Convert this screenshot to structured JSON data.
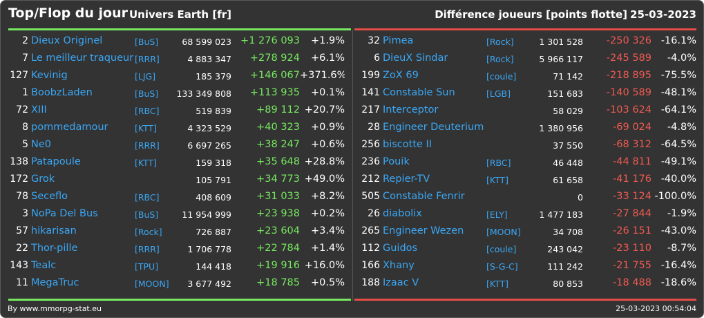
{
  "header": {
    "title": "Top/Flop du jour",
    "universe": "Univers Earth [fr]",
    "metric": "Différence joueurs [points flotte]",
    "date": "25-03-2023"
  },
  "colors": {
    "background": "#333333",
    "positive": "#77e860",
    "negative": "#ef5a52",
    "link": "#3aa7f5"
  },
  "top": [
    {
      "rank": "2",
      "name": "Dieux Originel",
      "alliance": "[BuS]",
      "points": "68 599 023",
      "delta": "+1 276 093",
      "pct": "+1.9%"
    },
    {
      "rank": "7",
      "name": "Le meilleur traqueur",
      "alliance": "[RRR]",
      "points": "4 883 347",
      "delta": "+278 924",
      "pct": "+6.1%"
    },
    {
      "rank": "127",
      "name": "Kevinig",
      "alliance": "[LJG]",
      "points": "185 379",
      "delta": "+146 067",
      "pct": "+371.6%"
    },
    {
      "rank": "1",
      "name": "BoobzLaden",
      "alliance": "[BuS]",
      "points": "133 349 808",
      "delta": "+113 935",
      "pct": "+0.1%"
    },
    {
      "rank": "72",
      "name": "XIII",
      "alliance": "[RBC]",
      "points": "519 839",
      "delta": "+89 112",
      "pct": "+20.7%"
    },
    {
      "rank": "8",
      "name": "pommedamour",
      "alliance": "[KTT]",
      "points": "4 323 529",
      "delta": "+40 323",
      "pct": "+0.9%"
    },
    {
      "rank": "5",
      "name": "Ne0",
      "alliance": "[RRR]",
      "points": "6 697 265",
      "delta": "+38 247",
      "pct": "+0.6%"
    },
    {
      "rank": "138",
      "name": "Patapoule",
      "alliance": "[KTT]",
      "points": "159 318",
      "delta": "+35 648",
      "pct": "+28.8%"
    },
    {
      "rank": "172",
      "name": "Grok",
      "alliance": "",
      "points": "105 791",
      "delta": "+34 773",
      "pct": "+49.0%"
    },
    {
      "rank": "78",
      "name": "Seceflo",
      "alliance": "[RBC]",
      "points": "408 609",
      "delta": "+31 033",
      "pct": "+8.2%"
    },
    {
      "rank": "3",
      "name": "NoPa Del Bus",
      "alliance": "[BuS]",
      "points": "11 954 999",
      "delta": "+23 938",
      "pct": "+0.2%"
    },
    {
      "rank": "57",
      "name": "hikarisan",
      "alliance": "[Rock]",
      "points": "726 887",
      "delta": "+23 604",
      "pct": "+3.4%"
    },
    {
      "rank": "22",
      "name": "Thor-pille",
      "alliance": "[RRR]",
      "points": "1 706 778",
      "delta": "+22 784",
      "pct": "+1.4%"
    },
    {
      "rank": "143",
      "name": "Tealc",
      "alliance": "[TPU]",
      "points": "144 418",
      "delta": "+19 916",
      "pct": "+16.0%"
    },
    {
      "rank": "11",
      "name": "MegaTruc",
      "alliance": "[MOON]",
      "points": "3 677 492",
      "delta": "+18 785",
      "pct": "+0.5%"
    }
  ],
  "flop": [
    {
      "rank": "32",
      "name": "Pimea",
      "alliance": "[Rock]",
      "points": "1 301 528",
      "delta": "-250 326",
      "pct": "-16.1%"
    },
    {
      "rank": "6",
      "name": "DieuX Sindar",
      "alliance": "[Rock]",
      "points": "5 966 117",
      "delta": "-245 589",
      "pct": "-4.0%"
    },
    {
      "rank": "199",
      "name": "ZoX 69",
      "alliance": "[coule]",
      "points": "71 142",
      "delta": "-218 895",
      "pct": "-75.5%"
    },
    {
      "rank": "141",
      "name": "Constable Sun",
      "alliance": "[LGB]",
      "points": "151 683",
      "delta": "-140 589",
      "pct": "-48.1%"
    },
    {
      "rank": "217",
      "name": "Interceptor",
      "alliance": "",
      "points": "58 029",
      "delta": "-103 624",
      "pct": "-64.1%"
    },
    {
      "rank": "28",
      "name": "Engineer Deuterium",
      "alliance": "",
      "points": "1 380 956",
      "delta": "-69 024",
      "pct": "-4.8%"
    },
    {
      "rank": "256",
      "name": "biscotte II",
      "alliance": "",
      "points": "37 550",
      "delta": "-68 312",
      "pct": "-64.5%"
    },
    {
      "rank": "236",
      "name": "Pouik",
      "alliance": "[RBC]",
      "points": "46 448",
      "delta": "-44 811",
      "pct": "-49.1%"
    },
    {
      "rank": "212",
      "name": "Repier-TV",
      "alliance": "[KTT]",
      "points": "61 658",
      "delta": "-41 176",
      "pct": "-40.0%"
    },
    {
      "rank": "505",
      "name": "Constable Fenrir",
      "alliance": "",
      "points": "0",
      "delta": "-33 124",
      "pct": "-100.0%"
    },
    {
      "rank": "26",
      "name": "diabolix",
      "alliance": "[ELY]",
      "points": "1 477 183",
      "delta": "-27 844",
      "pct": "-1.9%"
    },
    {
      "rank": "265",
      "name": "Engineer Wezen",
      "alliance": "[MOON]",
      "points": "34 708",
      "delta": "-26 151",
      "pct": "-43.0%"
    },
    {
      "rank": "112",
      "name": "Guidos",
      "alliance": "[coule]",
      "points": "243 042",
      "delta": "-23 110",
      "pct": "-8.7%"
    },
    {
      "rank": "166",
      "name": "Xhany",
      "alliance": "[S-G-C]",
      "points": "111 242",
      "delta": "-21 755",
      "pct": "-16.4%"
    },
    {
      "rank": "188",
      "name": "Izaac V",
      "alliance": "[KTT]",
      "points": "80 853",
      "delta": "-18 488",
      "pct": "-18.6%"
    }
  ],
  "footer": {
    "source": "By www.mmorpg-stat.eu",
    "timestamp": "25-03-2023 00:54:04"
  }
}
